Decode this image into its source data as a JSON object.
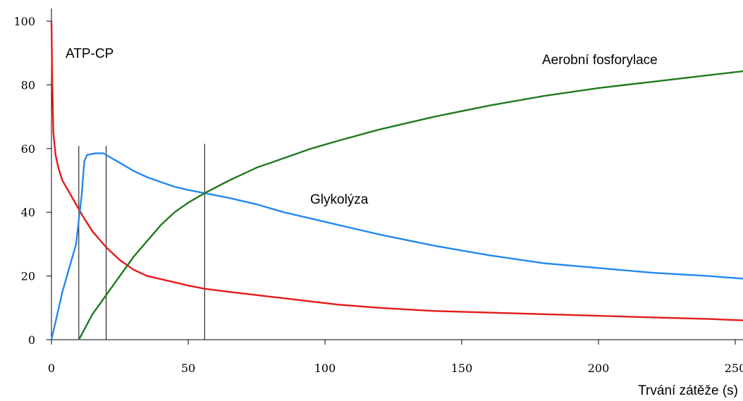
{
  "chart_data": {
    "type": "line",
    "xlabel": "Trvání zátěže (s)",
    "ylabel": "",
    "xlim": [
      0,
      255
    ],
    "ylim": [
      0,
      100
    ],
    "x_ticks": [
      "0",
      "50",
      "100",
      "150",
      "200",
      "250"
    ],
    "y_ticks": [
      "0",
      "20",
      "40",
      "60",
      "80",
      "100"
    ],
    "reference_lines_x": [
      10,
      20,
      56
    ],
    "series": [
      {
        "name": "ATP-CP",
        "color": "#e41a1a",
        "points": [
          [
            0,
            100
          ],
          [
            0.3,
            80
          ],
          [
            0.7,
            65
          ],
          [
            1.5,
            58
          ],
          [
            2.5,
            54
          ],
          [
            4,
            50
          ],
          [
            6,
            47
          ],
          [
            8,
            44
          ],
          [
            10,
            41
          ],
          [
            12,
            38
          ],
          [
            15,
            34
          ],
          [
            20,
            29
          ],
          [
            25,
            25
          ],
          [
            30,
            22
          ],
          [
            35,
            20
          ],
          [
            40,
            19
          ],
          [
            45,
            18
          ],
          [
            50,
            17
          ],
          [
            56,
            16
          ],
          [
            65,
            15
          ],
          [
            75,
            14
          ],
          [
            85,
            13
          ],
          [
            95,
            12
          ],
          [
            105,
            11
          ],
          [
            120,
            10
          ],
          [
            140,
            9
          ],
          [
            160,
            8.5
          ],
          [
            180,
            8
          ],
          [
            200,
            7.5
          ],
          [
            220,
            7
          ],
          [
            240,
            6.5
          ],
          [
            255,
            6
          ]
        ]
      },
      {
        "name": "Glykolýza",
        "color": "#2288ee",
        "points": [
          [
            0,
            0
          ],
          [
            4,
            15
          ],
          [
            9,
            30
          ],
          [
            11,
            45
          ],
          [
            12,
            56
          ],
          [
            13,
            58
          ],
          [
            16,
            58.5
          ],
          [
            19,
            58.5
          ],
          [
            20,
            58
          ],
          [
            22,
            57
          ],
          [
            25,
            55.5
          ],
          [
            30,
            53
          ],
          [
            35,
            51
          ],
          [
            40,
            49.5
          ],
          [
            45,
            48
          ],
          [
            50,
            47
          ],
          [
            56,
            46
          ],
          [
            65,
            44.5
          ],
          [
            75,
            42.5
          ],
          [
            85,
            40
          ],
          [
            95,
            38
          ],
          [
            105,
            36
          ],
          [
            120,
            33
          ],
          [
            140,
            29.5
          ],
          [
            160,
            26.5
          ],
          [
            180,
            24
          ],
          [
            200,
            22.5
          ],
          [
            220,
            21
          ],
          [
            240,
            20
          ],
          [
            255,
            19
          ]
        ]
      },
      {
        "name": "Aerobní fosforylace",
        "color": "#1e7a1e",
        "points": [
          [
            10,
            0
          ],
          [
            15,
            8
          ],
          [
            20,
            14
          ],
          [
            25,
            20
          ],
          [
            30,
            26
          ],
          [
            35,
            31
          ],
          [
            40,
            36
          ],
          [
            45,
            40
          ],
          [
            50,
            43
          ],
          [
            56,
            46
          ],
          [
            65,
            50
          ],
          [
            75,
            54
          ],
          [
            85,
            57
          ],
          [
            95,
            60
          ],
          [
            105,
            62.5
          ],
          [
            120,
            66
          ],
          [
            140,
            70
          ],
          [
            160,
            73.5
          ],
          [
            180,
            76.5
          ],
          [
            200,
            79
          ],
          [
            220,
            81
          ],
          [
            240,
            83
          ],
          [
            255,
            84.5
          ]
        ]
      }
    ]
  }
}
